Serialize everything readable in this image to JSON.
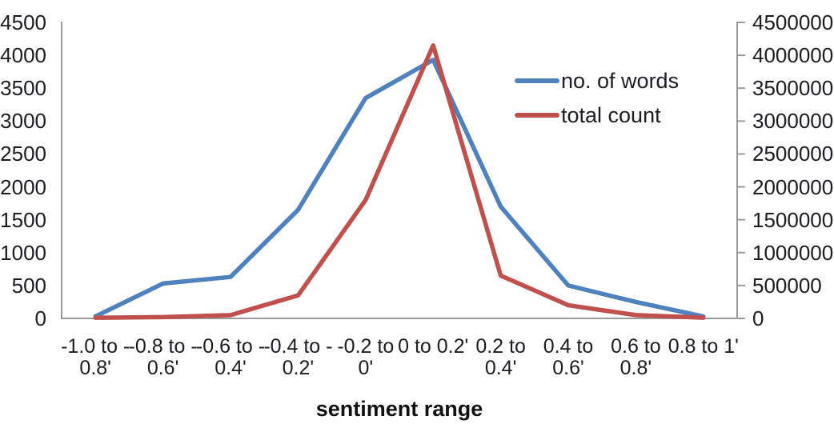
{
  "chart_data": {
    "type": "line",
    "title": "",
    "xlabel": "sentiment range",
    "ylabel_left": "",
    "ylabel_right": "",
    "grid": false,
    "legend_position": "upper-right",
    "axis_color": "#9a9a9a",
    "text_color": "#1c1c22",
    "categories": [
      [
        "-1.0 to -",
        "0.8'"
      ],
      [
        "-0.8 to -",
        "0.6'"
      ],
      [
        "-0.6 to -",
        "0.4'"
      ],
      [
        "-0.4 to -",
        "0.2'"
      ],
      [
        "-0.2 to",
        "0'"
      ],
      [
        "0 to 0.2'"
      ],
      [
        "0.2 to",
        "0.4'"
      ],
      [
        "0.4 to",
        "0.6'"
      ],
      [
        "0.6 to",
        "0.8'"
      ],
      [
        "0.8 to 1'"
      ]
    ],
    "series": [
      {
        "name": "no. of words",
        "color": "#4f81bd",
        "axis": "left",
        "values": [
          30,
          530,
          630,
          1650,
          3350,
          3930,
          1700,
          500,
          250,
          30
        ]
      },
      {
        "name": "total count",
        "color": "#c0504d",
        "axis": "right",
        "values": [
          10000,
          20000,
          50000,
          350000,
          1800000,
          4150000,
          650000,
          200000,
          50000,
          10000
        ]
      }
    ],
    "left_axis": {
      "min": 0,
      "max": 4500,
      "step": 500,
      "ticks": [
        "0",
        "500",
        "1000",
        "1500",
        "2000",
        "2500",
        "3000",
        "3500",
        "4000",
        "4500"
      ]
    },
    "right_axis": {
      "min": 0,
      "max": 4500000,
      "step": 500000,
      "ticks": [
        "0",
        "500000",
        "1000000",
        "1500000",
        "2000000",
        "2500000",
        "3000000",
        "3500000",
        "4000000",
        "4500000"
      ]
    }
  }
}
